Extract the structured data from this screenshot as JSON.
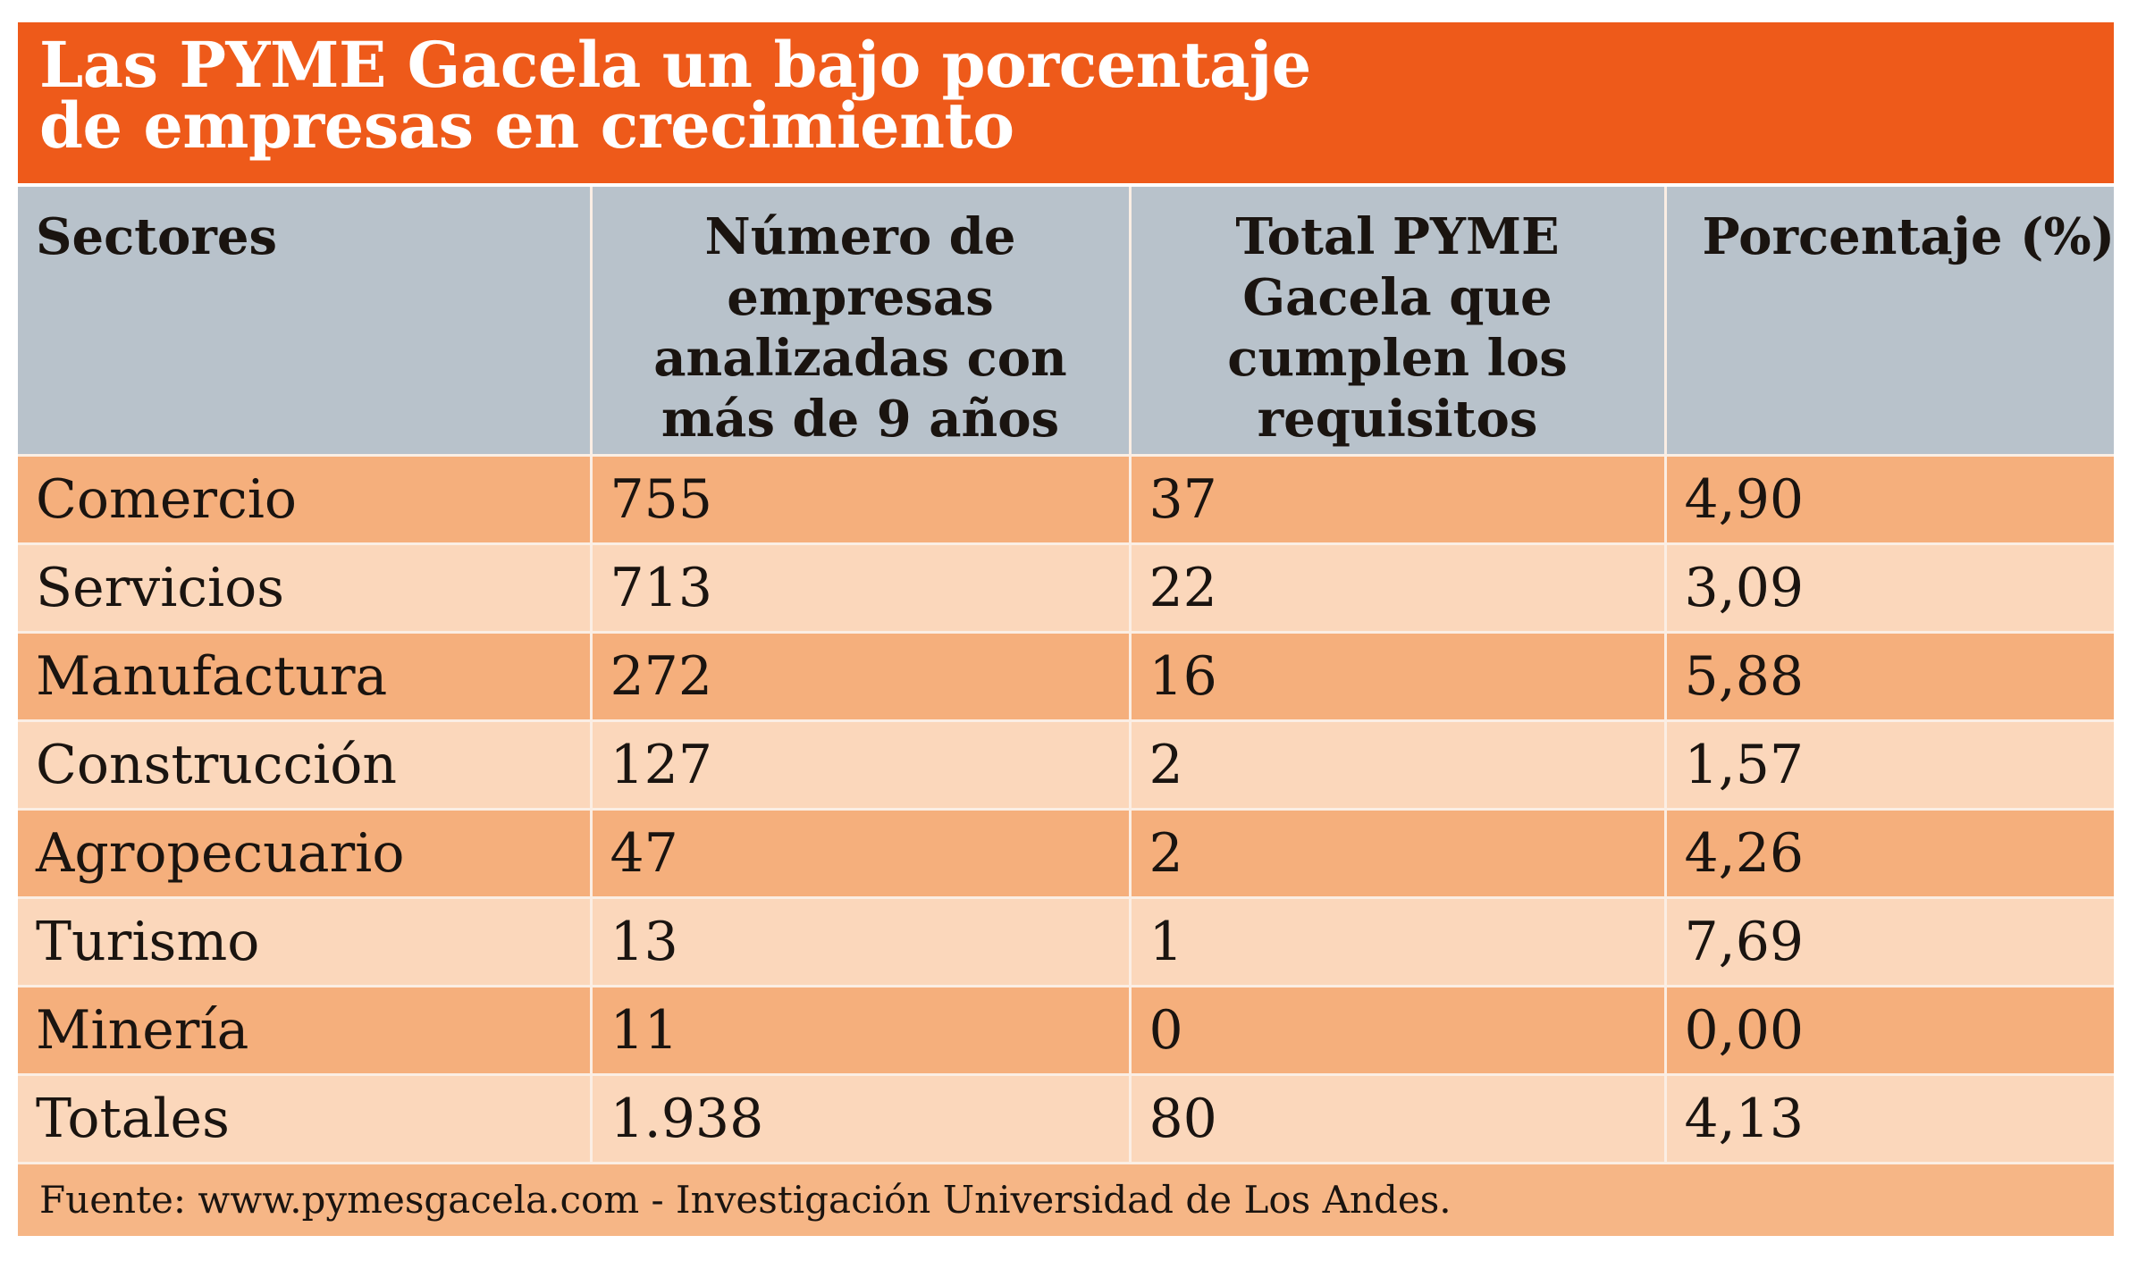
{
  "title": {
    "line1": "Las PYME Gacela un bajo porcentaje",
    "line2": "de empresas en crecimiento"
  },
  "colors": {
    "title_bg": "#ee5a1a",
    "header_bg": "#b8c2cb",
    "row_dark": "#f5af7c",
    "row_light": "#fbd7bb",
    "footer_bg": "#f6b686"
  },
  "table": {
    "headers": [
      "Sectores",
      "Número de empresas analizadas con más de 9 años",
      "Total PYME Gacela que cumplen los requisitos",
      "Porcentaje (%)"
    ],
    "header_lines": {
      "col1": [
        "Número de",
        "empresas",
        "analizadas con",
        "más de 9 años"
      ],
      "col2": [
        "Total PYME",
        "Gacela que",
        "cumplen los",
        "requisitos"
      ]
    },
    "rows": [
      [
        "Comercio",
        "755",
        "37",
        "4,90"
      ],
      [
        "Servicios",
        "713",
        "22",
        "3,09"
      ],
      [
        "Manufactura",
        "272",
        "16",
        "5,88"
      ],
      [
        "Construcción",
        "127",
        "2",
        "1,57"
      ],
      [
        "Agropecuario",
        "47",
        "2",
        "4,26"
      ],
      [
        "Turismo",
        "13",
        "1",
        "7,69"
      ],
      [
        "Minería",
        "11",
        "0",
        "0,00"
      ],
      [
        "Totales",
        "1.938",
        "80",
        "4,13"
      ]
    ]
  },
  "footer": "Fuente: www.pymesgacela.com - Investigación Universidad de Los Andes."
}
